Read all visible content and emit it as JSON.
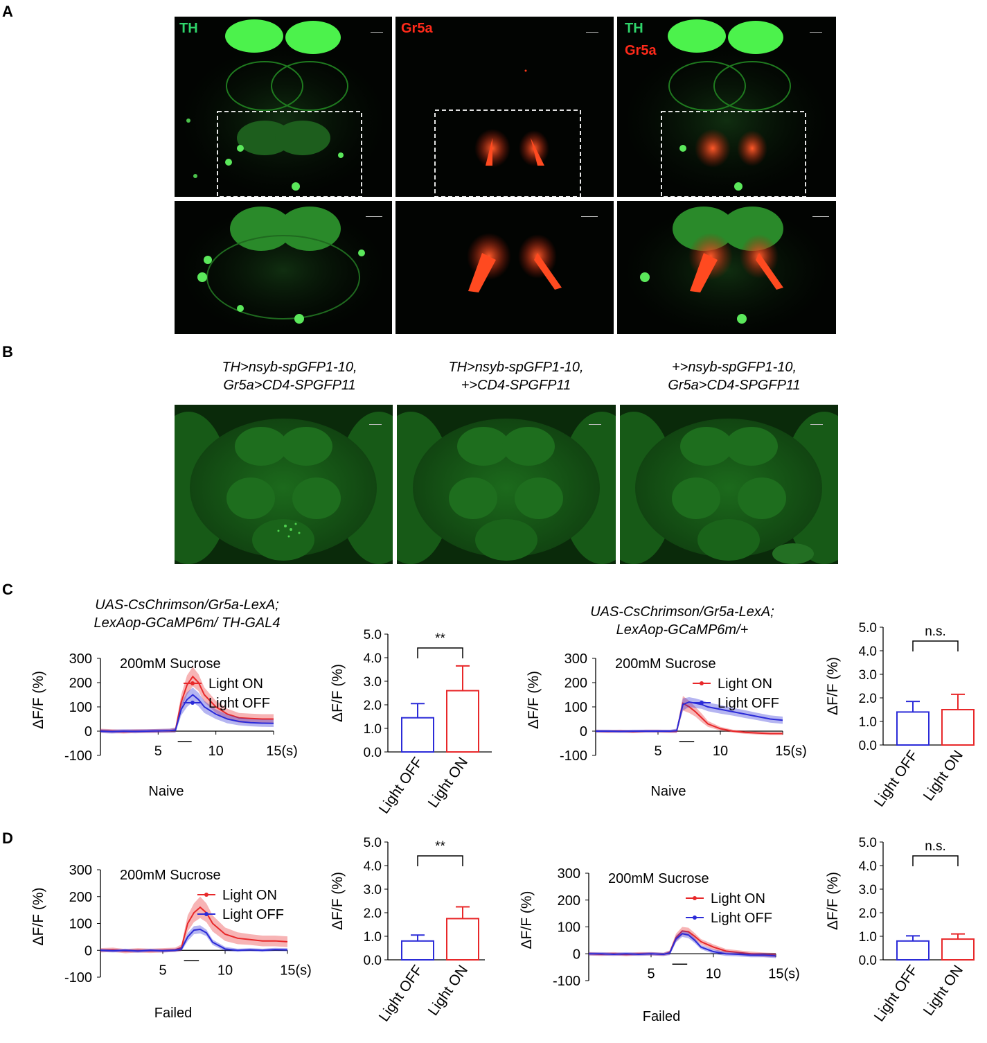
{
  "panels": {
    "A": {
      "letter": "A",
      "labels": {
        "th": "TH",
        "gr5a": "Gr5a"
      }
    },
    "B": {
      "letter": "B",
      "genotypes": [
        {
          "line1": "TH>nsyb-spGFP1-10,",
          "line2": "Gr5a>CD4-SPGFP11"
        },
        {
          "line1": "TH>nsyb-spGFP1-10,",
          "line2": "+>CD4-SPGFP11"
        },
        {
          "line1": "+>nsyb-spGFP1-10,",
          "line2": "Gr5a>CD4-SPGFP11"
        }
      ]
    },
    "C": {
      "letter": "C",
      "left_genotype": {
        "line1": "UAS-CsChrimson/Gr5a-LexA;",
        "line2": "LexAop-GCaMP6m/ TH-GAL4"
      },
      "right_genotype": {
        "line1": "UAS-CsChrimson/Gr5a-LexA;",
        "line2": "LexAop-GCaMP6m/+"
      }
    },
    "D": {
      "letter": "D"
    }
  },
  "colors": {
    "light_on": "#e8282a",
    "light_off": "#2b2bd8",
    "th_green": "#3ee03e",
    "gr5a_red": "#ff3c1e"
  },
  "chart_data": [
    {
      "id": "C-trace-left",
      "type": "line",
      "title": "200mM Sucrose",
      "xlabel": "Naive",
      "ylabel": "ΔF/F (%)",
      "xticks": [
        "5",
        "10",
        "15(s)"
      ],
      "xtick_values": [
        5,
        10,
        15
      ],
      "yticks": [
        "300",
        "200",
        "100",
        "0",
        "-100"
      ],
      "ytick_values": [
        300,
        200,
        100,
        0,
        -100
      ],
      "xlim": [
        0,
        15
      ],
      "ylim": [
        -100,
        300
      ],
      "series": [
        {
          "name": "Light ON",
          "color": "#e8282a",
          "x": [
            0,
            1,
            2,
            3,
            4,
            5,
            6,
            6.5,
            7,
            7.5,
            8,
            8.5,
            9,
            10,
            11,
            12,
            13,
            14,
            15
          ],
          "y": [
            2,
            0,
            -2,
            0,
            0,
            1,
            2,
            5,
            120,
            190,
            225,
            200,
            150,
            100,
            70,
            55,
            52,
            50,
            50
          ],
          "err": [
            8,
            8,
            8,
            8,
            8,
            8,
            8,
            10,
            30,
            40,
            40,
            35,
            30,
            25,
            22,
            20,
            20,
            20,
            20
          ]
        },
        {
          "name": "Light OFF",
          "color": "#2b2bd8",
          "x": [
            0,
            1,
            2,
            3,
            4,
            5,
            6,
            6.5,
            7,
            7.5,
            8,
            8.5,
            9,
            10,
            11,
            12,
            13,
            14,
            15
          ],
          "y": [
            0,
            -2,
            0,
            -1,
            0,
            1,
            2,
            4,
            90,
            130,
            150,
            130,
            100,
            70,
            50,
            40,
            35,
            33,
            32
          ],
          "err": [
            8,
            8,
            8,
            8,
            8,
            8,
            8,
            10,
            25,
            30,
            30,
            28,
            25,
            20,
            18,
            16,
            15,
            15,
            15
          ]
        }
      ]
    },
    {
      "id": "C-bar-left",
      "type": "bar",
      "categories": [
        "Light OFF",
        "Light ON"
      ],
      "values": [
        1.45,
        2.6
      ],
      "errors": [
        0.6,
        1.05
      ],
      "ylabel": "ΔF/F (%)",
      "yticks": [
        "0.0",
        "1.0",
        "2.0",
        "3.0",
        "4.0",
        "5.0"
      ],
      "ylim": [
        0,
        5
      ],
      "significance": "**"
    },
    {
      "id": "C-trace-right",
      "type": "line",
      "title": "200mM Sucrose",
      "xlabel": "Naive",
      "ylabel": "ΔF/F (%)",
      "xticks": [
        "5",
        "10",
        "15(s)"
      ],
      "xtick_values": [
        5,
        10,
        15
      ],
      "yticks": [
        "300",
        "200",
        "100",
        "0",
        "-100"
      ],
      "ytick_values": [
        300,
        200,
        100,
        0,
        -100
      ],
      "xlim": [
        0,
        15
      ],
      "ylim": [
        -100,
        300
      ],
      "series": [
        {
          "name": "Light ON",
          "color": "#e8282a",
          "x": [
            0,
            1,
            2,
            3,
            4,
            5,
            6,
            6.5,
            7,
            7.5,
            8,
            8.5,
            9,
            10,
            11,
            12,
            13,
            14,
            15
          ],
          "y": [
            0,
            -1,
            0,
            -2,
            0,
            0,
            -1,
            0,
            115,
            100,
            80,
            55,
            30,
            10,
            0,
            -5,
            -8,
            -10,
            -10
          ],
          "err": [
            6,
            6,
            6,
            6,
            6,
            6,
            6,
            8,
            30,
            25,
            20,
            18,
            12,
            8,
            6,
            6,
            6,
            6,
            6
          ]
        },
        {
          "name": "Light OFF",
          "color": "#2b2bd8",
          "x": [
            0,
            1,
            2,
            3,
            4,
            5,
            6,
            6.5,
            7,
            7.5,
            8,
            8.5,
            9,
            10,
            11,
            12,
            13,
            14,
            15
          ],
          "y": [
            0,
            0,
            -1,
            0,
            0,
            0,
            0,
            2,
            110,
            120,
            115,
            110,
            100,
            90,
            80,
            70,
            60,
            50,
            45
          ],
          "err": [
            6,
            6,
            6,
            6,
            6,
            6,
            6,
            8,
            25,
            20,
            20,
            18,
            18,
            18,
            16,
            16,
            15,
            15,
            15
          ]
        }
      ]
    },
    {
      "id": "C-bar-right",
      "type": "bar",
      "categories": [
        "Light OFF",
        "Light ON"
      ],
      "values": [
        1.4,
        1.5
      ],
      "errors": [
        0.45,
        0.65
      ],
      "ylabel": "ΔF/F (%)",
      "yticks": [
        "0.0",
        "1.0",
        "2.0",
        "3.0",
        "4.0",
        "5.0"
      ],
      "ylim": [
        0,
        5
      ],
      "significance": "n.s."
    },
    {
      "id": "D-trace-left",
      "type": "line",
      "title": "200mM Sucrose",
      "xlabel": "Failed",
      "ylabel": "ΔF/F (%)",
      "xticks": [
        "5",
        "10",
        "15(s)"
      ],
      "xtick_values": [
        5,
        10,
        15
      ],
      "yticks": [
        "300",
        "200",
        "100",
        "0",
        "-100"
      ],
      "ytick_values": [
        300,
        200,
        100,
        0,
        -100
      ],
      "xlim": [
        0,
        15
      ],
      "ylim": [
        -100,
        300
      ],
      "series": [
        {
          "name": "Light ON",
          "color": "#e8282a",
          "x": [
            0,
            1,
            2,
            3,
            4,
            5,
            6,
            6.5,
            7,
            7.5,
            8,
            8.5,
            9,
            10,
            11,
            12,
            13,
            14,
            15
          ],
          "y": [
            0,
            2,
            -3,
            0,
            -2,
            0,
            2,
            10,
            100,
            140,
            160,
            140,
            100,
            60,
            45,
            40,
            35,
            35,
            32
          ],
          "err": [
            8,
            8,
            8,
            8,
            8,
            8,
            8,
            12,
            30,
            35,
            40,
            35,
            30,
            25,
            22,
            20,
            20,
            20,
            20
          ]
        },
        {
          "name": "Light OFF",
          "color": "#2b2bd8",
          "x": [
            0,
            1,
            2,
            3,
            4,
            5,
            6,
            6.5,
            7,
            7.5,
            8,
            8.5,
            9,
            10,
            11,
            12,
            13,
            14,
            15
          ],
          "y": [
            0,
            -2,
            0,
            -3,
            0,
            -2,
            0,
            5,
            50,
            75,
            78,
            65,
            30,
            5,
            0,
            2,
            0,
            3,
            2
          ],
          "err": [
            6,
            6,
            6,
            6,
            6,
            6,
            6,
            8,
            15,
            15,
            15,
            12,
            10,
            8,
            6,
            6,
            6,
            6,
            6
          ]
        }
      ]
    },
    {
      "id": "D-bar-left",
      "type": "bar",
      "categories": [
        "Light OFF",
        "Light ON"
      ],
      "values": [
        0.8,
        1.75
      ],
      "errors": [
        0.25,
        0.5
      ],
      "ylabel": "ΔF/F (%)",
      "yticks": [
        "0.0",
        "1.0",
        "2.0",
        "3.0",
        "4.0",
        "5.0"
      ],
      "ylim": [
        0,
        5
      ],
      "significance": "**"
    },
    {
      "id": "D-trace-right",
      "type": "line",
      "title": "200mM Sucrose",
      "xlabel": "Failed",
      "ylabel": "ΔF/F (%)",
      "xticks": [
        "5",
        "10",
        "15(s)"
      ],
      "xtick_values": [
        5,
        10,
        15
      ],
      "yticks": [
        "300",
        "200",
        "100",
        "0",
        "-100"
      ],
      "ytick_values": [
        300,
        200,
        100,
        0,
        -100
      ],
      "xlim": [
        0,
        15
      ],
      "ylim": [
        -100,
        300
      ],
      "series": [
        {
          "name": "Light ON",
          "color": "#e8282a",
          "x": [
            0,
            1,
            2,
            3,
            4,
            5,
            6,
            6.5,
            7,
            7.5,
            8,
            8.5,
            9,
            10,
            11,
            12,
            13,
            14,
            15
          ],
          "y": [
            0,
            -2,
            0,
            -3,
            0,
            0,
            -2,
            5,
            60,
            85,
            82,
            65,
            45,
            25,
            10,
            5,
            0,
            -3,
            -5
          ],
          "err": [
            6,
            6,
            6,
            6,
            6,
            6,
            6,
            8,
            15,
            15,
            15,
            12,
            10,
            10,
            8,
            8,
            8,
            8,
            8
          ]
        },
        {
          "name": "Light OFF",
          "color": "#2b2bd8",
          "x": [
            0,
            1,
            2,
            3,
            4,
            5,
            6,
            6.5,
            7,
            7.5,
            8,
            8.5,
            9,
            10,
            11,
            12,
            13,
            14,
            15
          ],
          "y": [
            0,
            0,
            -2,
            0,
            -2,
            0,
            -2,
            3,
            55,
            75,
            70,
            50,
            25,
            8,
            0,
            -2,
            -5,
            -5,
            -8
          ],
          "err": [
            6,
            6,
            6,
            6,
            6,
            6,
            6,
            8,
            12,
            12,
            12,
            10,
            8,
            8,
            8,
            8,
            8,
            8,
            8
          ]
        }
      ]
    },
    {
      "id": "D-bar-right",
      "type": "bar",
      "categories": [
        "Light OFF",
        "Light ON"
      ],
      "values": [
        0.8,
        0.88
      ],
      "errors": [
        0.22,
        0.22
      ],
      "ylabel": "ΔF/F (%)",
      "yticks": [
        "0.0",
        "1.0",
        "2.0",
        "3.0",
        "4.0",
        "5.0"
      ],
      "ylim": [
        0,
        5
      ],
      "significance": "n.s."
    }
  ]
}
